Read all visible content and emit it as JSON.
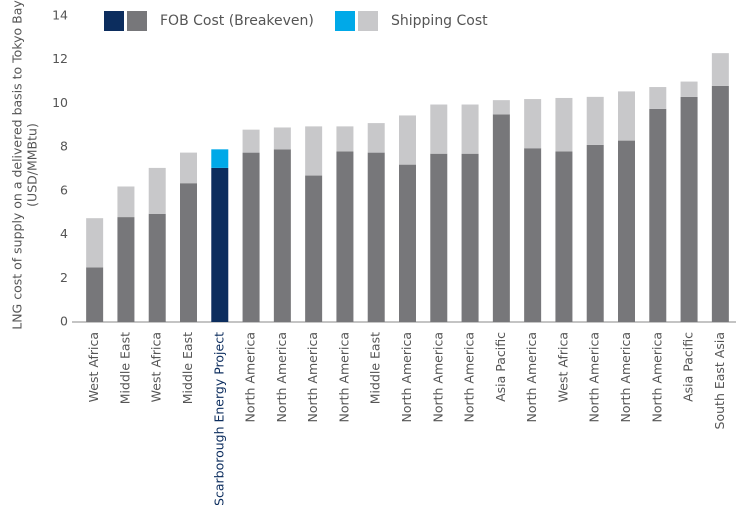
{
  "chart_data": {
    "type": "stacked_bar",
    "ylabel": [
      "LNG cost of supply on a delivered basis to Tokyo Bay",
      "(USD/MMBtu)"
    ],
    "categories": [
      "West Africa",
      "Middle East",
      "West Africa",
      "Middle East",
      "Scarborough Energy Project",
      "North America",
      "North America",
      "North America",
      "North America",
      "Middle East",
      "North America",
      "North America",
      "North America",
      "Asia Pacific",
      "North America",
      "West Africa",
      "North America",
      "North America",
      "North America",
      "Asia Pacific",
      "South East Asia"
    ],
    "highlight_index": 4,
    "highlight_label_color": "#0c2d5e",
    "series": [
      {
        "name": "FOB Cost (Breakeven)",
        "color": "#77777a",
        "highlight_color": "#0c2d5e",
        "values": [
          2.5,
          4.8,
          4.95,
          6.35,
          7.05,
          7.75,
          7.9,
          6.7,
          7.8,
          7.75,
          7.2,
          7.7,
          7.7,
          9.5,
          7.95,
          7.8,
          8.1,
          8.3,
          9.75,
          10.3,
          10.8
        ]
      },
      {
        "name": "Shipping Cost",
        "color": "#c8c8ca",
        "highlight_color": "#00a9e8",
        "values": [
          2.25,
          1.4,
          2.1,
          1.4,
          0.85,
          1.05,
          1.0,
          2.25,
          1.15,
          1.35,
          2.25,
          2.25,
          2.25,
          0.65,
          2.25,
          2.45,
          2.2,
          2.25,
          1.0,
          0.7,
          1.5
        ]
      }
    ],
    "ylim": [
      0,
      14
    ],
    "yticks": [
      0,
      2,
      4,
      6,
      8,
      10,
      12,
      14
    ]
  }
}
